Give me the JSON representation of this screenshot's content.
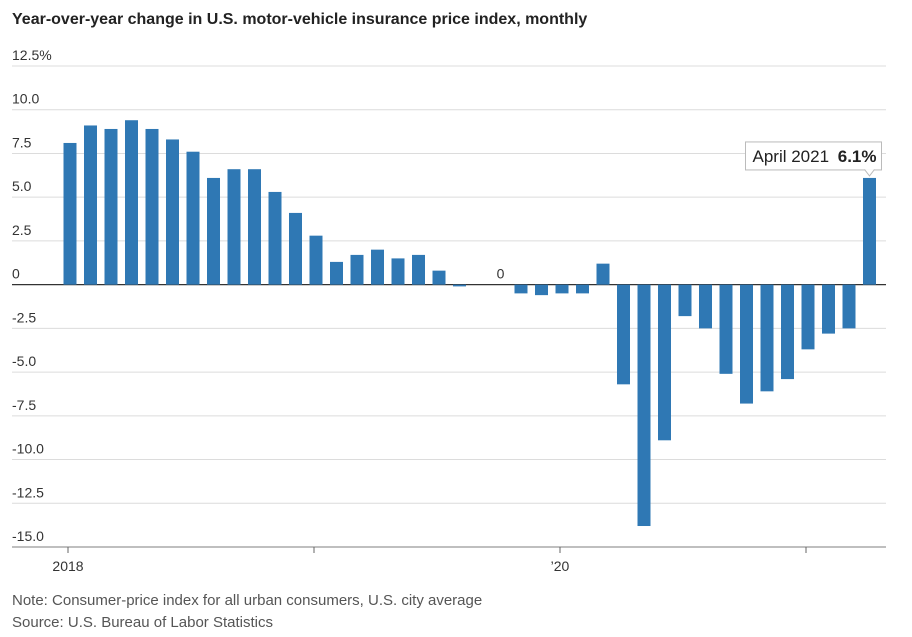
{
  "chart_data": {
    "type": "bar",
    "title": "Year-over-year change in U.S. motor-vehicle insurance price index, monthly",
    "categories": [
      "2018",
      null,
      null,
      null,
      null,
      null,
      null,
      null,
      null,
      null,
      null,
      null,
      null,
      null,
      null,
      null,
      null,
      null,
      null,
      null,
      null,
      null,
      null,
      null,
      "’20",
      null,
      null,
      null,
      null,
      null,
      null,
      null,
      null,
      null,
      null,
      null,
      null,
      null,
      null,
      null
    ],
    "values": [
      8.1,
      9.1,
      8.9,
      9.4,
      8.9,
      8.3,
      7.6,
      6.1,
      6.6,
      6.6,
      5.3,
      4.1,
      2.8,
      1.3,
      1.7,
      2.0,
      1.5,
      1.7,
      0.8,
      -0.1,
      0.0,
      0,
      -0.5,
      -0.6,
      -0.5,
      -0.5,
      1.2,
      -5.7,
      -13.8,
      -8.9,
      -1.8,
      -2.5,
      -5.1,
      -6.8,
      -6.1,
      -5.4,
      -3.7,
      -2.8,
      -2.5,
      6.1
    ],
    "value_labels": [
      null,
      null,
      null,
      null,
      null,
      null,
      null,
      null,
      null,
      null,
      null,
      null,
      null,
      null,
      null,
      null,
      null,
      null,
      null,
      null,
      null,
      "0",
      null,
      null,
      null,
      null,
      null,
      null,
      null,
      null,
      null,
      null,
      null,
      null,
      null,
      null,
      null,
      null,
      null,
      "6.1%"
    ],
    "annotation": "April 2021",
    "color": "#2f78b4",
    "ylim": [
      -15,
      12.5
    ],
    "yticks": [
      {
        "value": 12.5,
        "label": "12.5%"
      },
      {
        "value": 10,
        "label": "10.0"
      },
      7.5,
      {
        "value": 5,
        "label": "5.0"
      },
      2.5,
      0,
      -2.5,
      {
        "value": -5,
        "label": "-5.0"
      },
      -7.5,
      {
        "value": -10,
        "label": "-10.0"
      },
      -12.5,
      {
        "value": -15,
        "label": "-15.0"
      }
    ],
    "grid": true,
    "notes": [
      "Note: Consumer-price index for all urban consumers, U.S. city average",
      "Source: U.S. Bureau of Labor Statistics"
    ]
  }
}
